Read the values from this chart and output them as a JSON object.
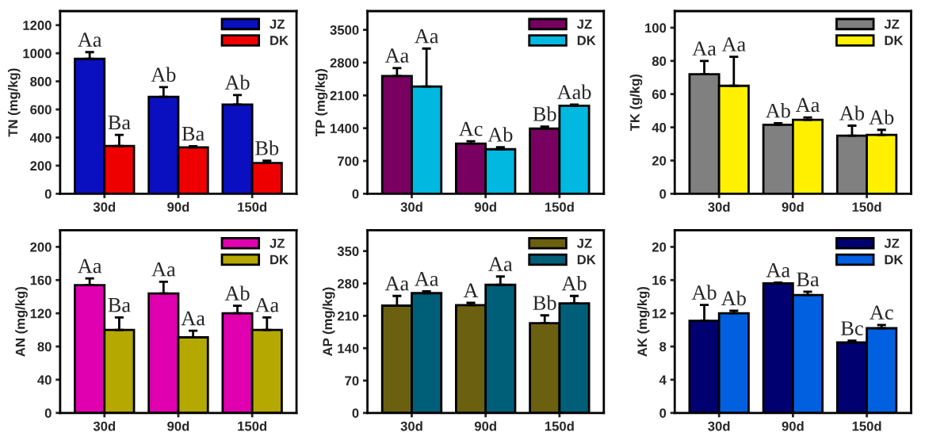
{
  "chart_data": [
    {
      "type": "bar",
      "ylabel": "TN (mg/kg)",
      "categories": [
        "30d",
        "90d",
        "150d"
      ],
      "ylim": [
        0,
        1300
      ],
      "yticks": [
        0,
        200,
        400,
        600,
        800,
        1000,
        1200
      ],
      "legend": "top right",
      "grid": false,
      "series": [
        {
          "name": "JZ",
          "color": "#0a10c0",
          "values": [
            960,
            690,
            635
          ],
          "errors": [
            [
              960,
              1008
            ],
            [
              690,
              759
            ],
            [
              635,
              703
            ]
          ],
          "value_labels": [
            "Aa",
            "Ab",
            "Ab"
          ]
        },
        {
          "name": "DK",
          "color": "#ee0000",
          "values": [
            340,
            330,
            218
          ],
          "errors": [
            [
              340,
              419
            ],
            [
              330,
              339
            ],
            [
              218,
              236
            ]
          ],
          "value_labels": [
            "Ba",
            "Ba",
            "Bb"
          ]
        }
      ]
    },
    {
      "type": "bar",
      "ylabel": "TP (mg/kg)",
      "categories": [
        "30d",
        "90d",
        "150d"
      ],
      "ylim": [
        0,
        3900
      ],
      "yticks": [
        0,
        700,
        1400,
        2100,
        2800,
        3500
      ],
      "legend": "top right",
      "grid": false,
      "series": [
        {
          "name": "JZ",
          "color": "#780060",
          "values": [
            2515,
            1070,
            1390
          ],
          "errors": [
            [
              2515,
              2685
            ],
            [
              1070,
              1120
            ],
            [
              1390,
              1435
            ]
          ],
          "value_labels": [
            "Aa",
            "Ac",
            "Bb"
          ]
        },
        {
          "name": "DK",
          "color": "#00b8e0",
          "values": [
            2290,
            950,
            1880
          ],
          "errors": [
            [
              2290,
              3100
            ],
            [
              950,
              995
            ],
            [
              1880,
              1905
            ]
          ],
          "value_labels": [
            "Aa",
            "Ab",
            "Aab"
          ]
        }
      ]
    },
    {
      "type": "bar",
      "ylabel": "TK (g/kg)",
      "categories": [
        "30d",
        "90d",
        "150d"
      ],
      "ylim": [
        0,
        110
      ],
      "yticks": [
        0,
        20,
        40,
        60,
        80,
        100
      ],
      "legend": "top right",
      "grid": false,
      "series": [
        {
          "name": "JZ",
          "color": "#808080",
          "values": [
            72,
            41.5,
            35
          ],
          "errors": [
            [
              72,
              80
            ],
            [
              41.5,
              42.5
            ],
            [
              35,
              41
            ]
          ],
          "value_labels": [
            "Aa",
            "Ab",
            "Ab"
          ]
        },
        {
          "name": "DK",
          "color": "#fff000",
          "values": [
            65,
            44.5,
            35.5
          ],
          "errors": [
            [
              65,
              82.5
            ],
            [
              44.5,
              46
            ],
            [
              35.5,
              38.5
            ]
          ],
          "value_labels": [
            "Aa",
            "Aa",
            "Ab"
          ]
        }
      ]
    },
    {
      "type": "bar",
      "ylabel": "AN (mg/kg)",
      "categories": [
        "30d",
        "90d",
        "150d"
      ],
      "ylim": [
        0,
        220
      ],
      "yticks": [
        0,
        40,
        80,
        120,
        160,
        200
      ],
      "legend": "top right",
      "grid": false,
      "series": [
        {
          "name": "JZ",
          "color": "#e000b0",
          "values": [
            154,
            144,
            120
          ],
          "errors": [
            [
              154,
              162
            ],
            [
              144,
              158
            ],
            [
              120,
              129
            ]
          ],
          "value_labels": [
            "Aa",
            "Aa",
            "Ab"
          ]
        },
        {
          "name": "DK",
          "color": "#b5a800",
          "values": [
            100,
            91,
            100
          ],
          "errors": [
            [
              100,
              115
            ],
            [
              91,
              99
            ],
            [
              100,
              115
            ]
          ],
          "value_labels": [
            "Ba",
            "Aa",
            "Aa"
          ]
        }
      ]
    },
    {
      "type": "bar",
      "ylabel": "AP (mg/kg)",
      "categories": [
        "30d",
        "90d",
        "150d"
      ],
      "ylim": [
        0,
        395
      ],
      "yticks": [
        0,
        70,
        140,
        210,
        280,
        350
      ],
      "legend": "top right",
      "grid": false,
      "series": [
        {
          "name": "JZ",
          "color": "#6b6010",
          "values": [
            232,
            233,
            194
          ],
          "errors": [
            [
              232,
              253
            ],
            [
              233,
              238
            ],
            [
              194,
              211
            ]
          ],
          "value_labels": [
            "Aa",
            "A",
            "Bb"
          ]
        },
        {
          "name": "DK",
          "color": "#005f78",
          "values": [
            259,
            277,
            237
          ],
          "errors": [
            [
              259,
              263
            ],
            [
              277,
              295
            ],
            [
              237,
              253
            ]
          ],
          "value_labels": [
            "Aa",
            "Aa",
            "Ab"
          ]
        }
      ]
    },
    {
      "type": "bar",
      "ylabel": "AK (mg/kg)",
      "categories": [
        "30d",
        "90d",
        "150d"
      ],
      "ylim": [
        0,
        22
      ],
      "yticks": [
        0,
        4,
        8,
        12,
        16,
        20
      ],
      "legend": "top right",
      "grid": false,
      "series": [
        {
          "name": "JZ",
          "color": "#000070",
          "values": [
            11.1,
            15.6,
            8.5
          ],
          "errors": [
            [
              11.1,
              13
            ],
            [
              15.6,
              15.7
            ],
            [
              8.5,
              8.7
            ]
          ],
          "value_labels": [
            "Ab",
            "Aa",
            "Bc"
          ]
        },
        {
          "name": "DK",
          "color": "#0060e0",
          "values": [
            12,
            14.2,
            10.2
          ],
          "errors": [
            [
              12,
              12.3
            ],
            [
              14.2,
              14.6
            ],
            [
              10.2,
              10.6
            ]
          ],
          "value_labels": [
            "Ab",
            "Ba",
            "Ac"
          ]
        }
      ]
    }
  ]
}
